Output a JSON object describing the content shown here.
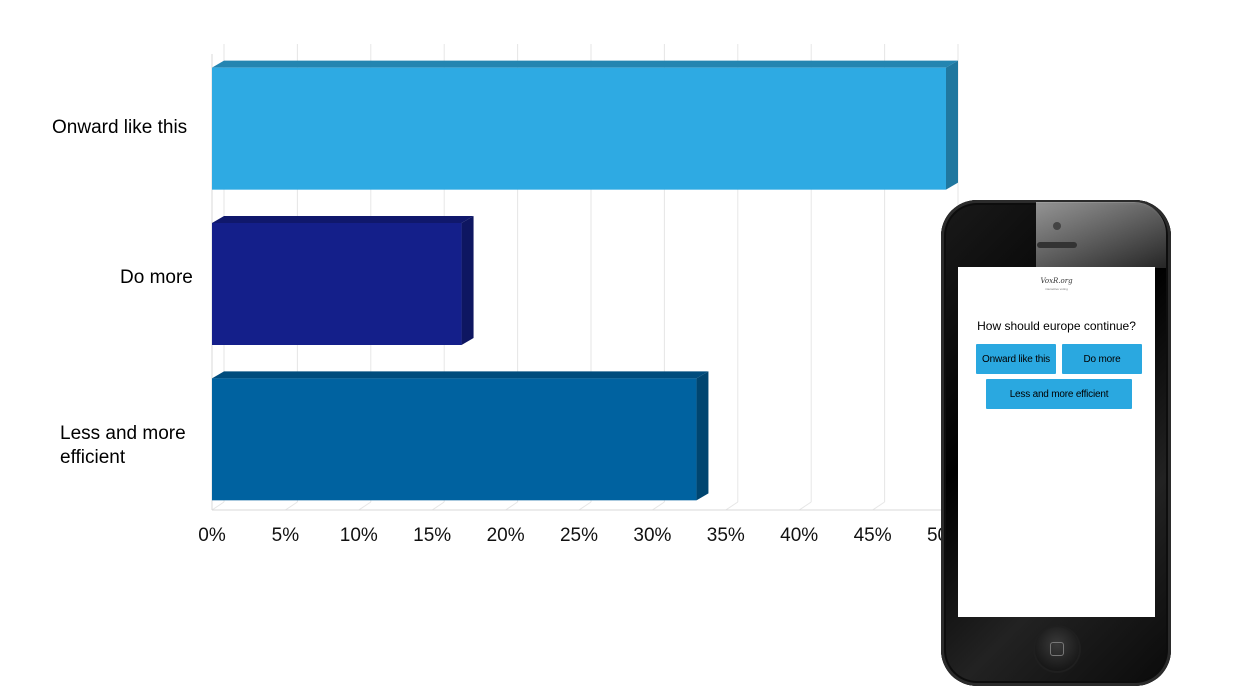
{
  "chart_data": {
    "type": "bar",
    "orientation": "horizontal",
    "style": "3d",
    "categories": [
      "Onward like this",
      "Do more",
      "Less and more efficient"
    ],
    "values": [
      50,
      17,
      33
    ],
    "colors": [
      "#2eaae3",
      "#141f8a",
      "#0062a0"
    ],
    "xlim": [
      0,
      50
    ],
    "x_ticks": [
      "0%",
      "5%",
      "10%",
      "15%",
      "20%",
      "25%",
      "30%",
      "35%",
      "40%",
      "45%",
      "50%"
    ],
    "grid": true,
    "title": "",
    "xlabel": "",
    "ylabel": ""
  },
  "phone": {
    "logo": "VoxR.org",
    "logo_sub": "interactive voting",
    "question": "How should europe continue?",
    "options": [
      "Onward like this",
      "Do more",
      "Less and more efficient"
    ],
    "button_color": "#2aa8e0"
  }
}
